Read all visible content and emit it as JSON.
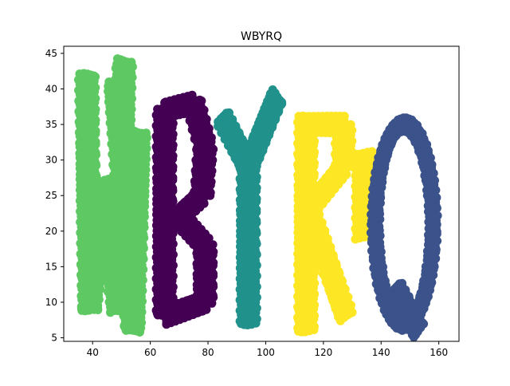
{
  "chart_data": {
    "type": "scatter",
    "title": "WBYRQ",
    "xlabel": "",
    "ylabel": "",
    "xlim": [
      30,
      167
    ],
    "ylim": [
      4.5,
      46
    ],
    "xticks": [
      40,
      60,
      80,
      100,
      120,
      140,
      160
    ],
    "yticks": [
      5,
      10,
      15,
      20,
      25,
      30,
      35,
      40,
      45
    ],
    "grid": false,
    "legend": "none",
    "series": [
      {
        "letter": "W",
        "color": "#5ec962",
        "strokes": [
          [
            [
              38,
              42
            ],
            [
              39,
              9
            ]
          ],
          [
            [
              39,
              9
            ],
            [
              44,
              27
            ]
          ],
          [
            [
              44,
              27
            ],
            [
              49,
              9
            ]
          ],
          [
            [
              49,
              9
            ],
            [
              51,
              44
            ]
          ],
          [
            [
              48,
              41
            ],
            [
              54,
              6
            ]
          ],
          [
            [
              54,
              6
            ],
            [
              56,
              34
            ]
          ]
        ]
      },
      {
        "letter": "B",
        "color": "#440154",
        "strokes": [
          [
            [
              65,
              37
            ],
            [
              65,
              8
            ]
          ],
          [
            [
              65,
              37
            ],
            [
              75,
              38
            ]
          ],
          [
            [
              75,
              38
            ],
            [
              79,
              32
            ]
          ],
          [
            [
              79,
              32
            ],
            [
              78,
              25
            ]
          ],
          [
            [
              78,
              25
            ],
            [
              70,
              22
            ]
          ],
          [
            [
              70,
              22
            ],
            [
              79,
              18
            ]
          ],
          [
            [
              79,
              18
            ],
            [
              79,
              10
            ]
          ],
          [
            [
              79,
              10
            ],
            [
              65,
              8
            ]
          ]
        ]
      },
      {
        "letter": "Y",
        "color": "#21918c",
        "strokes": [
          [
            [
              85,
              36
            ],
            [
              94,
              29
            ]
          ],
          [
            [
              104,
              39
            ],
            [
              94,
              29
            ]
          ],
          [
            [
              94,
              29
            ],
            [
              94,
              7
            ]
          ]
        ]
      },
      {
        "letter": "R",
        "color": "#fde725",
        "strokes": [
          [
            [
              114,
              36
            ],
            [
              114,
              6
            ]
          ],
          [
            [
              114,
              35
            ],
            [
              127,
              35
            ]
          ],
          [
            [
              127,
              35
            ],
            [
              127,
              29
            ]
          ],
          [
            [
              127,
              29
            ],
            [
              115,
              23
            ]
          ],
          [
            [
              115,
              23
            ],
            [
              128,
              8
            ]
          ],
          [
            [
              134,
              31
            ],
            [
              134,
              19
            ]
          ]
        ]
      },
      {
        "letter": "Q",
        "color": "#3b528b",
        "ellipse": {
          "cx": 148,
          "cy": 21,
          "rx": 10,
          "ry": 14
        },
        "strokes": [
          [
            [
              145,
              12
            ],
            [
              153,
              6
            ]
          ]
        ]
      }
    ]
  }
}
